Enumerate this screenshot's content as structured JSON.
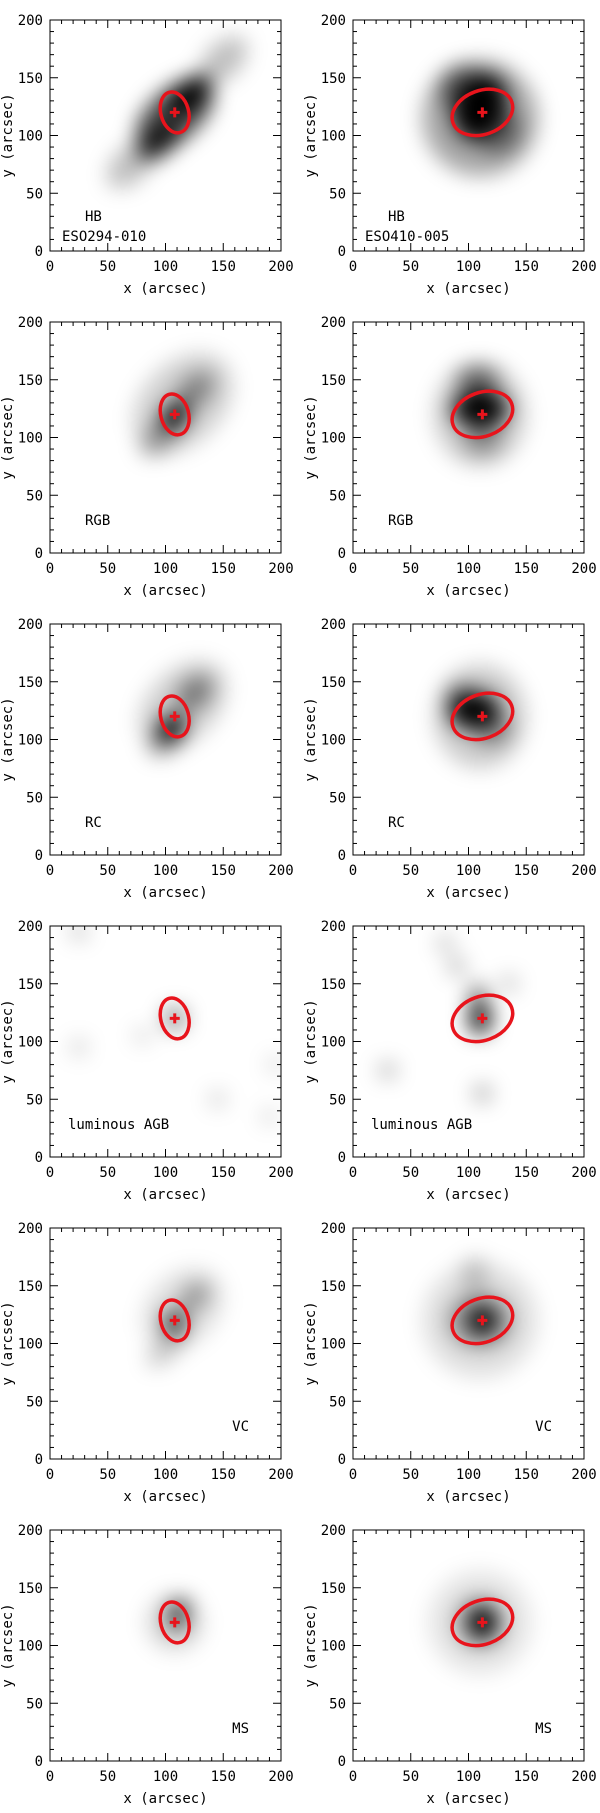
{
  "chart_data": [
    {
      "type": "heatmap",
      "xlabel": "x (arcsec)",
      "ylabel": "y (arcsec)",
      "xlim": [
        0,
        200
      ],
      "ylim": [
        0,
        200
      ],
      "xticks": [
        0,
        50,
        100,
        150,
        200
      ],
      "yticks": [
        0,
        50,
        100,
        150,
        200
      ],
      "population_label": "HB",
      "galaxy_label": "ESO294-010",
      "label_position": "bottom-left",
      "center": [
        108,
        120
      ],
      "ellipse": {
        "rx": 12,
        "ry": 18,
        "angle": -15
      },
      "density_sigma": 9,
      "blobs": [
        [
          120,
          135,
          1.0,
          22,
          12,
          40
        ],
        [
          95,
          95,
          0.8,
          22,
          12,
          40
        ],
        [
          108,
          118,
          0.7,
          40,
          22,
          40
        ],
        [
          150,
          165,
          0.25,
          25,
          15,
          45
        ],
        [
          70,
          75,
          0.25,
          25,
          15,
          45
        ]
      ]
    },
    {
      "type": "heatmap",
      "xlabel": "x (arcsec)",
      "ylabel": "y (arcsec)",
      "xlim": [
        0,
        200
      ],
      "ylim": [
        0,
        200
      ],
      "xticks": [
        0,
        50,
        100,
        150,
        200
      ],
      "yticks": [
        0,
        50,
        100,
        150,
        200
      ],
      "population_label": "HB",
      "galaxy_label": "ESO410-005",
      "label_position": "bottom-left",
      "center": [
        112,
        120
      ],
      "ellipse": {
        "rx": 27,
        "ry": 19,
        "angle": -20
      },
      "density_sigma": 9,
      "blobs": [
        [
          110,
          125,
          1.0,
          30,
          22,
          70
        ],
        [
          95,
          140,
          0.5,
          20,
          20,
          0
        ],
        [
          125,
          105,
          0.45,
          20,
          20,
          0
        ],
        [
          110,
          115,
          0.35,
          50,
          50,
          0
        ]
      ]
    },
    {
      "type": "heatmap",
      "xlabel": "x (arcsec)",
      "ylabel": "y (arcsec)",
      "xlim": [
        0,
        200
      ],
      "ylim": [
        0,
        200
      ],
      "xticks": [
        0,
        50,
        100,
        150,
        200
      ],
      "yticks": [
        0,
        50,
        100,
        150,
        200
      ],
      "population_label": "RGB",
      "galaxy_label": "",
      "label_position": "bottom-left",
      "center": [
        108,
        120
      ],
      "ellipse": {
        "rx": 12,
        "ry": 18,
        "angle": -15
      },
      "density_sigma": 9,
      "blobs": [
        [
          108,
          118,
          1.0,
          14,
          10,
          45
        ],
        [
          125,
          140,
          0.4,
          20,
          12,
          45
        ],
        [
          95,
          100,
          0.3,
          20,
          12,
          45
        ],
        [
          115,
          130,
          0.18,
          50,
          35,
          45
        ]
      ]
    },
    {
      "type": "heatmap",
      "xlabel": "x (arcsec)",
      "ylabel": "y (arcsec)",
      "xlim": [
        0,
        200
      ],
      "ylim": [
        0,
        200
      ],
      "xticks": [
        0,
        50,
        100,
        150,
        200
      ],
      "yticks": [
        0,
        50,
        100,
        150,
        200
      ],
      "population_label": "RGB",
      "galaxy_label": "",
      "label_position": "bottom-left",
      "center": [
        112,
        120
      ],
      "ellipse": {
        "rx": 27,
        "ry": 19,
        "angle": -20
      },
      "density_sigma": 9,
      "blobs": [
        [
          110,
          125,
          1.0,
          16,
          24,
          90
        ],
        [
          108,
          150,
          0.5,
          12,
          18,
          90
        ],
        [
          112,
          100,
          0.35,
          14,
          16,
          90
        ],
        [
          110,
          120,
          0.2,
          40,
          45,
          0
        ]
      ]
    },
    {
      "type": "heatmap",
      "xlabel": "x (arcsec)",
      "ylabel": "y (arcsec)",
      "xlim": [
        0,
        200
      ],
      "ylim": [
        0,
        200
      ],
      "xticks": [
        0,
        50,
        100,
        150,
        200
      ],
      "yticks": [
        0,
        50,
        100,
        150,
        200
      ],
      "population_label": "RC",
      "galaxy_label": "",
      "label_position": "bottom-left",
      "center": [
        108,
        120
      ],
      "ellipse": {
        "rx": 12,
        "ry": 18,
        "angle": -15
      },
      "density_sigma": 9,
      "blobs": [
        [
          105,
          110,
          1.0,
          14,
          10,
          50
        ],
        [
          125,
          140,
          0.45,
          18,
          12,
          45
        ],
        [
          100,
          100,
          0.3,
          18,
          12,
          45
        ],
        [
          115,
          130,
          0.18,
          45,
          30,
          45
        ]
      ]
    },
    {
      "type": "heatmap",
      "xlabel": "x (arcsec)",
      "ylabel": "y (arcsec)",
      "xlim": [
        0,
        200
      ],
      "ylim": [
        0,
        200
      ],
      "xticks": [
        0,
        50,
        100,
        150,
        200
      ],
      "yticks": [
        0,
        50,
        100,
        150,
        200
      ],
      "population_label": "RC",
      "galaxy_label": "",
      "label_position": "bottom-left",
      "center": [
        112,
        120
      ],
      "ellipse": {
        "rx": 27,
        "ry": 19,
        "angle": -20
      },
      "density_sigma": 9,
      "blobs": [
        [
          105,
          125,
          1.0,
          16,
          22,
          90
        ],
        [
          95,
          135,
          0.5,
          14,
          12,
          0
        ],
        [
          120,
          110,
          0.4,
          16,
          14,
          0
        ],
        [
          110,
          120,
          0.2,
          40,
          45,
          0
        ]
      ]
    },
    {
      "type": "heatmap",
      "xlabel": "x (arcsec)",
      "ylabel": "y (arcsec)",
      "xlim": [
        0,
        200
      ],
      "ylim": [
        0,
        200
      ],
      "xticks": [
        0,
        50,
        100,
        150,
        200
      ],
      "yticks": [
        0,
        50,
        100,
        150,
        200
      ],
      "population_label": "luminous AGB",
      "galaxy_label": "",
      "label_position": "bottom-left",
      "center": [
        108,
        120
      ],
      "ellipse": {
        "rx": 12,
        "ry": 18,
        "angle": -15
      },
      "density_sigma": 9,
      "blobs": [
        [
          108,
          120,
          0.45,
          10,
          10,
          0
        ],
        [
          25,
          195,
          0.2,
          8,
          8,
          0
        ],
        [
          25,
          95,
          0.15,
          8,
          8,
          0
        ],
        [
          145,
          50,
          0.15,
          8,
          8,
          0
        ],
        [
          195,
          80,
          0.12,
          8,
          8,
          0
        ],
        [
          190,
          35,
          0.12,
          8,
          8,
          0
        ],
        [
          80,
          105,
          0.12,
          8,
          8,
          0
        ]
      ]
    },
    {
      "type": "heatmap",
      "xlabel": "x (arcsec)",
      "ylabel": "y (arcsec)",
      "xlim": [
        0,
        200
      ],
      "ylim": [
        0,
        200
      ],
      "xticks": [
        0,
        50,
        100,
        150,
        200
      ],
      "yticks": [
        0,
        50,
        100,
        150,
        200
      ],
      "population_label": "luminous AGB",
      "galaxy_label": "",
      "label_position": "bottom-left",
      "center": [
        112,
        120
      ],
      "ellipse": {
        "rx": 27,
        "ry": 19,
        "angle": -20
      },
      "density_sigma": 9,
      "blobs": [
        [
          110,
          120,
          0.9,
          10,
          14,
          0
        ],
        [
          108,
          140,
          0.5,
          8,
          10,
          0
        ],
        [
          90,
          165,
          0.25,
          8,
          8,
          0
        ],
        [
          80,
          185,
          0.2,
          8,
          8,
          0
        ],
        [
          30,
          75,
          0.25,
          8,
          8,
          0
        ],
        [
          112,
          55,
          0.3,
          8,
          8,
          0
        ],
        [
          135,
          150,
          0.2,
          8,
          8,
          0
        ]
      ]
    },
    {
      "type": "heatmap",
      "xlabel": "x (arcsec)",
      "ylabel": "y (arcsec)",
      "xlim": [
        0,
        200
      ],
      "ylim": [
        0,
        200
      ],
      "xticks": [
        0,
        50,
        100,
        150,
        200
      ],
      "yticks": [
        0,
        50,
        100,
        150,
        200
      ],
      "population_label": "VC",
      "galaxy_label": "",
      "label_position": "bottom-right",
      "center": [
        108,
        120
      ],
      "ellipse": {
        "rx": 12,
        "ry": 18,
        "angle": -15
      },
      "density_sigma": 9,
      "blobs": [
        [
          108,
          118,
          0.85,
          10,
          10,
          0
        ],
        [
          125,
          140,
          0.35,
          15,
          10,
          45
        ],
        [
          100,
          95,
          0.2,
          20,
          10,
          45
        ],
        [
          115,
          130,
          0.12,
          40,
          30,
          45
        ]
      ]
    },
    {
      "type": "heatmap",
      "xlabel": "x (arcsec)",
      "ylabel": "y (arcsec)",
      "xlim": [
        0,
        200
      ],
      "ylim": [
        0,
        200
      ],
      "xticks": [
        0,
        50,
        100,
        150,
        200
      ],
      "yticks": [
        0,
        50,
        100,
        150,
        200
      ],
      "population_label": "VC",
      "galaxy_label": "",
      "label_position": "bottom-right",
      "center": [
        112,
        120
      ],
      "ellipse": {
        "rx": 27,
        "ry": 19,
        "angle": -20
      },
      "density_sigma": 9,
      "blobs": [
        [
          112,
          120,
          1.0,
          12,
          12,
          0
        ],
        [
          110,
          120,
          0.35,
          28,
          24,
          0
        ],
        [
          105,
          160,
          0.2,
          10,
          15,
          0
        ],
        [
          110,
          120,
          0.12,
          50,
          50,
          0
        ]
      ]
    },
    {
      "type": "heatmap",
      "xlabel": "x (arcsec)",
      "ylabel": "y (arcsec)",
      "xlim": [
        0,
        200
      ],
      "ylim": [
        0,
        200
      ],
      "xticks": [
        0,
        50,
        100,
        150,
        200
      ],
      "yticks": [
        0,
        50,
        100,
        150,
        200
      ],
      "population_label": "MS",
      "galaxy_label": "",
      "label_position": "bottom-right",
      "center": [
        108,
        120
      ],
      "ellipse": {
        "rx": 12,
        "ry": 18,
        "angle": -15
      },
      "density_sigma": 9,
      "blobs": [
        [
          110,
          125,
          0.9,
          7,
          12,
          0
        ],
        [
          115,
          135,
          0.5,
          6,
          6,
          0
        ],
        [
          108,
          120,
          0.15,
          25,
          25,
          0
        ]
      ]
    },
    {
      "type": "heatmap",
      "xlabel": "x (arcsec)",
      "ylabel": "y (arcsec)",
      "xlim": [
        0,
        200
      ],
      "ylim": [
        0,
        200
      ],
      "xticks": [
        0,
        50,
        100,
        150,
        200
      ],
      "yticks": [
        0,
        50,
        100,
        150,
        200
      ],
      "population_label": "MS",
      "galaxy_label": "",
      "label_position": "bottom-right",
      "center": [
        112,
        120
      ],
      "ellipse": {
        "rx": 27,
        "ry": 19,
        "angle": -20
      },
      "density_sigma": 9,
      "blobs": [
        [
          112,
          120,
          1.0,
          12,
          14,
          0
        ],
        [
          110,
          120,
          0.3,
          22,
          22,
          0
        ],
        [
          110,
          120,
          0.1,
          45,
          45,
          0
        ]
      ]
    }
  ],
  "colors": {
    "ellipse": "#e8141c",
    "center_marker": "#e8141c",
    "density": "#000000",
    "axes": "#000000",
    "background": "#ffffff"
  }
}
